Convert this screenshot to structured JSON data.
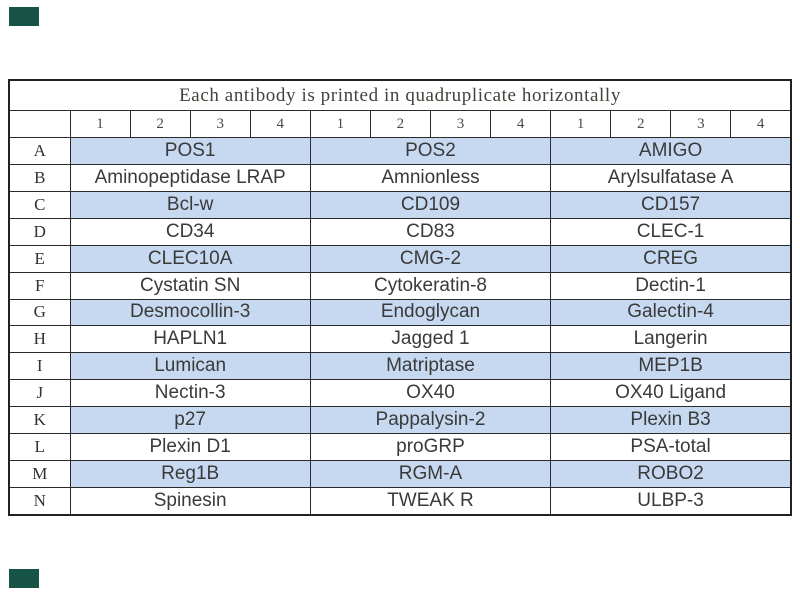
{
  "chart_data": {
    "type": "table",
    "title": "Each antibody is printed in quadruplicate horizontally",
    "column_numbers": [
      "1",
      "2",
      "3",
      "4",
      "1",
      "2",
      "3",
      "4",
      "1",
      "2",
      "3",
      "4"
    ],
    "replicates_per_antibody": 4,
    "antibody_columns_per_row": 3,
    "highlighted_rows": [
      "A",
      "C",
      "E",
      "G",
      "I",
      "K",
      "M"
    ],
    "colors": {
      "highlight_row": "#c6d9f0",
      "grid_border": "#2a2a2a",
      "title_text": "#45413b",
      "cell_text": "#3a3a3a",
      "corner_mark": "#175247"
    },
    "rows": [
      {
        "letter": "A",
        "antibodies": [
          "POS1",
          "POS2",
          "AMIGO"
        ]
      },
      {
        "letter": "B",
        "antibodies": [
          "Aminopeptidase LRAP",
          "Amnionless",
          "Arylsulfatase A"
        ]
      },
      {
        "letter": "C",
        "antibodies": [
          "Bcl-w",
          "CD109",
          "CD157"
        ]
      },
      {
        "letter": "D",
        "antibodies": [
          "CD34",
          "CD83",
          "CLEC-1"
        ]
      },
      {
        "letter": "E",
        "antibodies": [
          "CLEC10A",
          "CMG-2",
          "CREG"
        ]
      },
      {
        "letter": "F",
        "antibodies": [
          "Cystatin SN",
          "Cytokeratin-8",
          "Dectin-1"
        ]
      },
      {
        "letter": "G",
        "antibodies": [
          "Desmocollin-3",
          "Endoglycan",
          "Galectin-4"
        ]
      },
      {
        "letter": "H",
        "antibodies": [
          "HAPLN1",
          "Jagged 1",
          "Langerin"
        ]
      },
      {
        "letter": "I",
        "antibodies": [
          "Lumican",
          "Matriptase",
          "MEP1B"
        ]
      },
      {
        "letter": "J",
        "antibodies": [
          "Nectin-3",
          "OX40",
          "OX40 Ligand"
        ]
      },
      {
        "letter": "K",
        "antibodies": [
          "p27",
          "Pappalysin-2",
          "Plexin B3"
        ]
      },
      {
        "letter": "L",
        "antibodies": [
          "Plexin D1",
          "proGRP",
          "PSA-total"
        ]
      },
      {
        "letter": "M",
        "antibodies": [
          "Reg1B",
          "RGM-A",
          "ROBO2"
        ]
      },
      {
        "letter": "N",
        "antibodies": [
          "Spinesin",
          "TWEAK R",
          "ULBP-3"
        ]
      }
    ]
  }
}
